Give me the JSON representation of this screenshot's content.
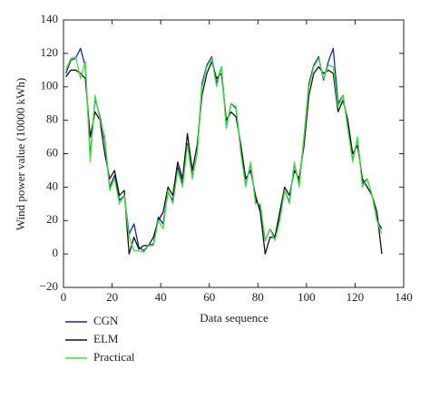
{
  "chart_data": {
    "type": "line",
    "xlabel": "Data sequence",
    "ylabel": "Wind power value (10000 kWh)",
    "x": [
      1,
      3,
      5,
      7,
      9,
      11,
      13,
      15,
      17,
      19,
      21,
      23,
      25,
      27,
      29,
      31,
      33,
      35,
      37,
      39,
      41,
      43,
      45,
      47,
      49,
      51,
      53,
      55,
      57,
      59,
      61,
      63,
      65,
      67,
      69,
      71,
      73,
      75,
      77,
      79,
      81,
      83,
      85,
      87,
      89,
      91,
      93,
      95,
      97,
      99,
      101,
      103,
      105,
      107,
      109,
      111,
      113,
      115,
      117,
      119,
      121,
      123,
      125,
      127,
      129,
      131
    ],
    "series": [
      {
        "name": "CGN",
        "color": "#1a2a9a",
        "values": [
          108,
          116,
          117,
          123,
          112,
          58,
          93,
          82,
          68,
          40,
          47,
          32,
          35,
          12,
          18,
          4,
          2,
          5,
          6,
          22,
          18,
          37,
          32,
          52,
          42,
          66,
          46,
          60,
          102,
          113,
          118,
          102,
          112,
          76,
          90,
          87,
          62,
          41,
          54,
          32,
          28,
          8,
          15,
          10,
          21,
          38,
          31,
          54,
          42,
          70,
          102,
          113,
          118,
          104,
          115,
          123,
          90,
          95,
          76,
          56,
          69,
          42,
          45,
          35,
          20,
          15
        ]
      },
      {
        "name": "ELM",
        "color": "#111111",
        "values": [
          106,
          110,
          110,
          108,
          105,
          70,
          85,
          80,
          60,
          45,
          50,
          35,
          38,
          0,
          10,
          3,
          5,
          5,
          10,
          20,
          25,
          40,
          35,
          55,
          45,
          72,
          50,
          65,
          95,
          108,
          115,
          105,
          108,
          80,
          85,
          82,
          65,
          45,
          50,
          35,
          25,
          0,
          10,
          10,
          25,
          40,
          35,
          50,
          45,
          65,
          95,
          108,
          112,
          108,
          110,
          108,
          85,
          92,
          80,
          60,
          65,
          45,
          40,
          35,
          25,
          0
        ]
      },
      {
        "name": "Practical",
        "color": "#44dd44",
        "values": [
          110,
          117,
          118,
          105,
          115,
          55,
          95,
          80,
          70,
          38,
          45,
          30,
          35,
          10,
          2,
          2,
          1,
          5,
          5,
          20,
          15,
          38,
          30,
          50,
          40,
          65,
          45,
          60,
          100,
          112,
          117,
          100,
          112,
          75,
          90,
          88,
          60,
          40,
          55,
          30,
          30,
          8,
          15,
          8,
          20,
          38,
          30,
          55,
          40,
          70,
          100,
          112,
          117,
          105,
          113,
          112,
          88,
          95,
          75,
          55,
          70,
          40,
          45,
          35,
          20,
          12
        ]
      }
    ],
    "xlim": [
      0,
      140
    ],
    "xticks": [
      0,
      20,
      40,
      60,
      80,
      100,
      120,
      140
    ],
    "ylim": [
      -20,
      140
    ],
    "yticks": [
      {
        "value": -20,
        "label": "−20"
      },
      0,
      20,
      40,
      60,
      80,
      100,
      120,
      140
    ]
  }
}
